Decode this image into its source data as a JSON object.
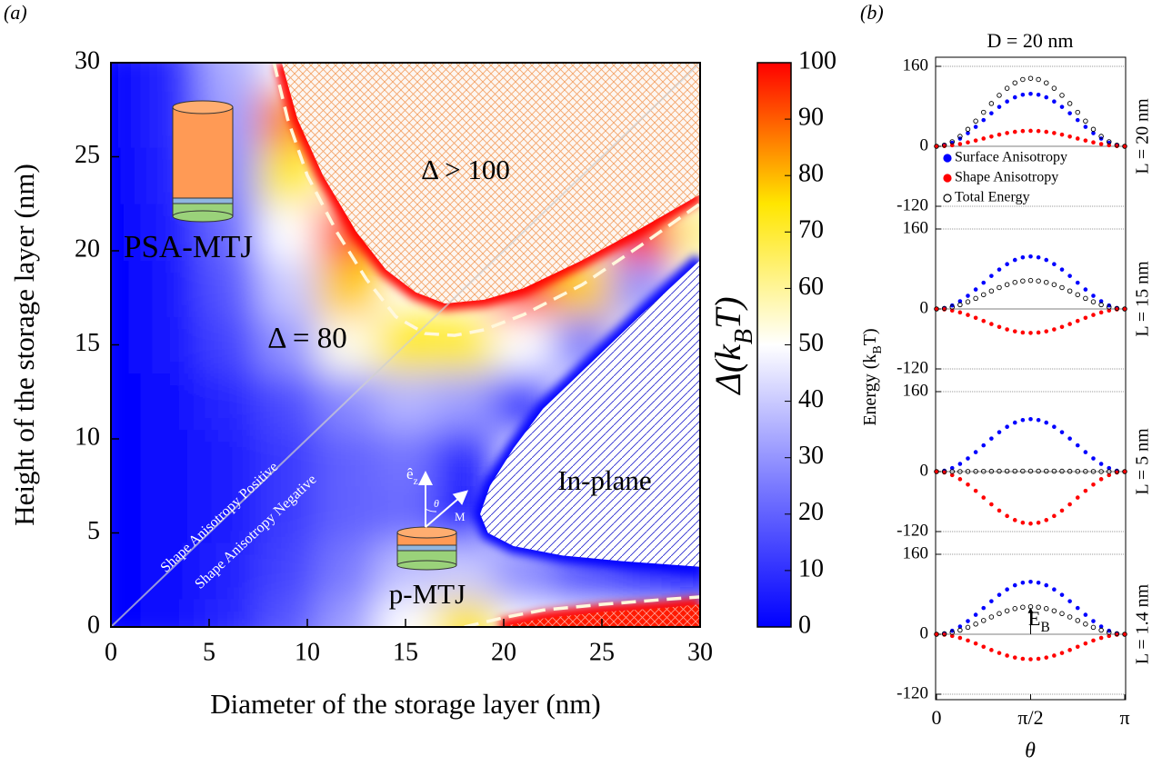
{
  "chart_data": [
    {
      "type": "heatmap",
      "panel_label": "(a)",
      "xlabel": "Diameter of the storage layer (nm)",
      "ylabel": "Height of the storage layer (nm)",
      "xlim": [
        0,
        30
      ],
      "ylim": [
        0,
        30
      ],
      "xticks": [
        0,
        5,
        10,
        15,
        20,
        25,
        30
      ],
      "yticks": [
        0,
        5,
        10,
        15,
        20,
        25,
        30
      ],
      "x": [
        0,
        3,
        6,
        9,
        12,
        15,
        18,
        21,
        24,
        27,
        30
      ],
      "y": [
        0,
        3,
        6,
        9,
        12,
        15,
        18,
        21,
        24,
        27,
        30
      ],
      "z": [
        [
          0,
          2,
          8,
          18,
          32,
          50,
          75,
          null,
          null,
          null,
          null
        ],
        [
          0,
          2,
          7,
          14,
          25,
          38,
          40,
          28,
          16,
          9,
          3
        ],
        [
          0,
          2,
          6,
          12,
          20,
          22,
          5,
          null,
          null,
          null,
          null
        ],
        [
          0,
          2,
          6,
          12,
          20,
          24,
          8,
          null,
          null,
          null,
          null
        ],
        [
          0,
          3,
          8,
          16,
          28,
          36,
          32,
          8,
          null,
          null,
          null
        ],
        [
          0,
          4,
          14,
          30,
          52,
          72,
          70,
          50,
          25,
          null,
          null
        ],
        [
          0,
          5,
          18,
          40,
          78,
          null,
          null,
          95,
          78,
          30,
          null
        ],
        [
          0,
          6,
          22,
          50,
          92,
          null,
          null,
          null,
          null,
          97,
          60
        ],
        [
          0,
          7,
          28,
          70,
          null,
          null,
          null,
          null,
          null,
          null,
          null
        ],
        [
          0,
          8,
          32,
          85,
          null,
          null,
          null,
          null,
          null,
          null,
          null
        ],
        [
          0,
          8,
          35,
          null,
          null,
          null,
          null,
          null,
          null,
          null,
          null
        ]
      ],
      "colormap": [
        "#0000ff",
        "#7a7aff",
        "#ffffff",
        "#ffe600",
        "#ff0000"
      ],
      "clim": [
        0,
        100
      ],
      "cticks": [
        0,
        10,
        20,
        30,
        40,
        50,
        60,
        70,
        80,
        90,
        100
      ],
      "colorbar_label": [
        "Δ(k",
        "B",
        "T)"
      ],
      "contours": [
        {
          "label": "Δ = 80",
          "color": "#fff8dc",
          "x": [
            8.3,
            9,
            10,
            11.5,
            13,
            14.5,
            16,
            17.5,
            19,
            21,
            24,
            27,
            30
          ],
          "y": [
            30,
            27,
            24,
            21,
            18.5,
            16.5,
            15.6,
            15.5,
            15.8,
            16.6,
            18.2,
            20.3,
            22.5
          ]
        },
        {
          "color": "#fff8dc",
          "x": [
            18,
            20,
            22,
            25,
            28,
            30
          ],
          "y": [
            0,
            0.5,
            0.9,
            1.2,
            1.45,
            1.6
          ]
        }
      ],
      "regions": [
        {
          "label": "Δ > 100",
          "hatch": "cross",
          "color": "#f4a46a",
          "background": "#fdf6f1",
          "x": [
            8.7,
            9.5,
            10.8,
            12.5,
            14,
            15.5,
            17,
            19,
            21,
            24,
            27,
            30
          ],
          "y": [
            30,
            27,
            24,
            21,
            19,
            17.8,
            17.2,
            17.4,
            18,
            19.5,
            21.2,
            23
          ]
        },
        {
          "label": "In-plane",
          "hatch": "lines",
          "color": "#2b2bd0",
          "background": "#ffffff",
          "x": [
            30,
            27,
            24,
            22,
            20.5,
            19.3,
            18.8,
            19.2,
            20.5,
            23,
            26,
            30
          ],
          "y": [
            19.5,
            16.6,
            13.6,
            11.6,
            9.5,
            7.5,
            6,
            5,
            4.3,
            3.8,
            3.5,
            3.2
          ]
        },
        {
          "hatch": "cross",
          "color": "#ff9a90",
          "background": "#ff1a00",
          "x": [
            19.8,
            22,
            25,
            28,
            30
          ],
          "y": [
            0,
            0.45,
            0.8,
            1,
            1.2
          ]
        }
      ],
      "annotations": {
        "psa": "PSA-MTJ",
        "pmtj": "p-MTJ",
        "positive": "Shape Anisotropy Positive",
        "negative": "Shape Anisotropy Negative",
        "ez": [
          "ê",
          "z"
        ],
        "theta": "θ",
        "m": "M"
      }
    },
    {
      "type": "scatter",
      "panel_label": "(b)",
      "title": "D = 20 nm",
      "xlabel": "θ",
      "ylabel": [
        "Energy (k",
        "B",
        "T)"
      ],
      "x": [
        0,
        0.1309,
        0.2618,
        0.3927,
        0.5236,
        0.6545,
        0.7854,
        0.9163,
        1.0472,
        1.1781,
        1.309,
        1.4399,
        1.5708,
        1.7017,
        1.8326,
        1.9635,
        2.0944,
        2.2253,
        2.3562,
        2.4871,
        2.618,
        2.7489,
        2.8798,
        3.0107,
        3.1416
      ],
      "xlim": [
        0,
        3.1416
      ],
      "xticks": [
        0,
        {
          "value": 1.5708,
          "label": "π/2"
        },
        {
          "value": 3.1416,
          "label": "π"
        }
      ],
      "series": [
        {
          "name": "Surface Anisotropy",
          "color": "#0000ff",
          "fill": "#0000ff"
        },
        {
          "name": "Shape Anisotropy",
          "color": "#ff0000",
          "fill": "#ff0000"
        },
        {
          "name": "Total Energy",
          "color": "#000000",
          "fill": "none"
        }
      ],
      "subplots": [
        {
          "label": "L = 20 nm",
          "ylim": [
            -120,
            160
          ],
          "yticks": [
            -120,
            0,
            160
          ],
          "legend": "lower left",
          "values": [
            [
              0,
              1.8,
              7,
              15.4,
              26.3,
              38.9,
              52.5,
              66.1,
              78.8,
              89.6,
              98,
              103.2,
              105,
              103.2,
              98,
              89.6,
              78.8,
              66.1,
              52.5,
              38.9,
              26.3,
              15.4,
              7,
              1.8,
              0
            ],
            [
              0,
              0.5,
              2.1,
              4.5,
              7.8,
              11.5,
              15.5,
              19.5,
              23.3,
              26.5,
              28.9,
              30.5,
              31,
              30.5,
              28.9,
              26.5,
              23.3,
              19.5,
              15.5,
              11.5,
              7.8,
              4.5,
              2.1,
              0.5,
              0
            ],
            [
              0,
              2.3,
              9.1,
              19.9,
              34,
              50.4,
              68,
              85.6,
              102,
              116.1,
              126.9,
              133.7,
              136,
              133.7,
              126.9,
              116.1,
              102,
              85.6,
              68,
              50.4,
              34,
              19.9,
              9.1,
              2.3,
              0
            ]
          ]
        },
        {
          "label": "L = 15 nm",
          "ylim": [
            -120,
            160
          ],
          "yticks": [
            -120,
            0,
            160
          ],
          "values": [
            [
              0,
              1.8,
              7,
              15.4,
              26.3,
              38.9,
              52.5,
              66.1,
              78.8,
              89.6,
              98,
              103.2,
              105,
              103.2,
              98,
              89.6,
              78.8,
              66.1,
              52.5,
              38.9,
              26.3,
              15.4,
              7,
              1.8,
              0
            ],
            [
              0,
              -0.8,
              -3.2,
              -7,
              -12,
              -17.8,
              -24,
              -30.2,
              -36,
              -41,
              -44.8,
              -47.2,
              -48,
              -47.2,
              -44.8,
              -41,
              -36,
              -30.2,
              -24,
              -17.8,
              -12,
              -7,
              -3.2,
              -0.8,
              0
            ],
            [
              0,
              1,
              3.8,
              8.3,
              14.3,
              21.1,
              28.5,
              35.9,
              42.8,
              48.7,
              53.2,
              56,
              57,
              56,
              53.2,
              48.7,
              42.8,
              35.9,
              28.5,
              21.1,
              14.3,
              8.3,
              3.8,
              1,
              0
            ]
          ]
        },
        {
          "label": "L = 5 nm",
          "ylim": [
            -120,
            160
          ],
          "yticks": [
            -120,
            0,
            160
          ],
          "values": [
            [
              0,
              1.8,
              7,
              15.4,
              26.3,
              38.9,
              52.5,
              66.1,
              78.8,
              89.6,
              98,
              103.2,
              105,
              103.2,
              98,
              89.6,
              78.8,
              66.1,
              52.5,
              38.9,
              26.3,
              15.4,
              7,
              1.8,
              0
            ],
            [
              0,
              -1.8,
              -7,
              -15.2,
              -26,
              -38.5,
              -52,
              -65.5,
              -78,
              -88.8,
              -97,
              -102.2,
              -104,
              -102.2,
              -97,
              -88.8,
              -78,
              -65.5,
              -52,
              -38.5,
              -26,
              -15.2,
              -7,
              -1.8,
              0
            ],
            [
              0,
              0,
              0.1,
              0.1,
              0.3,
              0.4,
              0.5,
              0.6,
              0.8,
              0.9,
              0.9,
              1,
              1,
              1,
              0.9,
              0.9,
              0.8,
              0.6,
              0.5,
              0.4,
              0.3,
              0.1,
              0.1,
              0,
              0
            ]
          ]
        },
        {
          "label": "L = 1.4 nm",
          "ylim": [
            -120,
            160
          ],
          "yticks": [
            -120,
            0,
            160
          ],
          "annotation": [
            "E",
            "B"
          ],
          "values": [
            [
              0,
              1.8,
              7,
              15.4,
              26.3,
              38.9,
              52.5,
              66.1,
              78.8,
              89.6,
              98,
              103.2,
              105,
              103.2,
              98,
              89.6,
              78.8,
              66.1,
              52.5,
              38.9,
              26.3,
              15.4,
              7,
              1.8,
              0
            ],
            [
              0,
              -0.9,
              -3.3,
              -7.3,
              -12.5,
              -18.5,
              -25,
              -31.5,
              -37.5,
              -42.7,
              -46.7,
              -49.1,
              -50,
              -49.1,
              -46.7,
              -42.7,
              -37.5,
              -31.5,
              -25,
              -18.5,
              -12.5,
              -7.3,
              -3.3,
              -0.9,
              0
            ],
            [
              0,
              0.9,
              3.7,
              8.1,
              13.8,
              20.4,
              27.5,
              34.6,
              41.3,
              46.9,
              51.3,
              54.1,
              55,
              54.1,
              51.3,
              46.9,
              41.3,
              34.6,
              27.5,
              20.4,
              13.8,
              8.1,
              3.7,
              0.9,
              0
            ]
          ]
        }
      ]
    }
  ]
}
